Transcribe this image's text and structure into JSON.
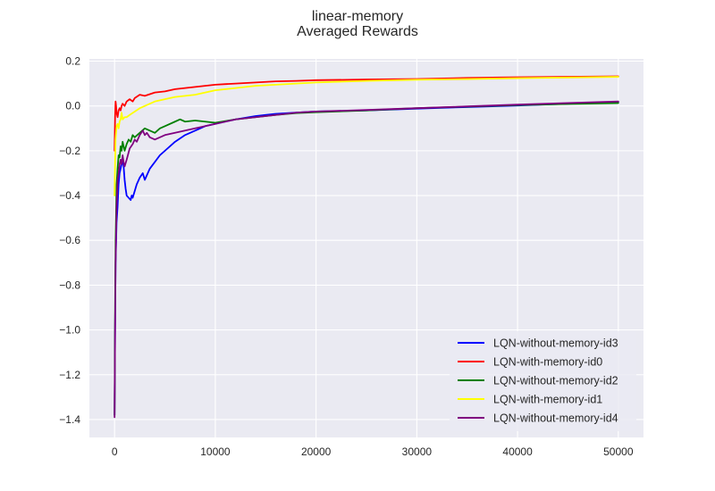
{
  "chart_data": {
    "type": "line",
    "title": "linear-memory",
    "subtitle": "Averaged Rewards",
    "xlabel": "",
    "ylabel": "",
    "xlim": [
      -2500,
      52500
    ],
    "ylim": [
      -1.48,
      0.21
    ],
    "x_ticks": [
      0,
      10000,
      20000,
      30000,
      40000,
      50000
    ],
    "x_tick_labels": [
      "0",
      "10000",
      "20000",
      "30000",
      "40000",
      "50000"
    ],
    "y_ticks": [
      0.2,
      0.0,
      -0.2,
      -0.4,
      -0.6,
      -0.8,
      -1.0,
      -1.2,
      -1.4
    ],
    "y_tick_labels": [
      "0.2",
      "0.0",
      "−0.2",
      "−0.4",
      "−0.6",
      "−0.8",
      "−1.0",
      "−1.2",
      "−1.4"
    ],
    "grid": true,
    "legend_position": "lower-right",
    "background": "#eaeaf2",
    "series": [
      {
        "name": "LQN-without-memory-id3",
        "color": "#0000ff",
        "x": [
          0,
          50,
          100,
          200,
          300,
          400,
          500,
          600,
          700,
          800,
          900,
          1000,
          1100,
          1200,
          1400,
          1600,
          1700,
          1800,
          2000,
          2200,
          2500,
          2800,
          3000,
          3500,
          4000,
          4500,
          5000,
          6000,
          7000,
          8000,
          9000,
          10000,
          12000,
          14000,
          16000,
          18000,
          20000,
          25000,
          30000,
          35000,
          40000,
          45000,
          50000
        ],
        "y": [
          -1.38,
          -1.0,
          -0.7,
          -0.52,
          -0.45,
          -0.35,
          -0.3,
          -0.28,
          -0.26,
          -0.24,
          -0.27,
          -0.33,
          -0.37,
          -0.4,
          -0.41,
          -0.42,
          -0.4,
          -0.41,
          -0.38,
          -0.35,
          -0.32,
          -0.3,
          -0.33,
          -0.28,
          -0.25,
          -0.22,
          -0.2,
          -0.16,
          -0.13,
          -0.11,
          -0.09,
          -0.08,
          -0.06,
          -0.045,
          -0.035,
          -0.03,
          -0.025,
          -0.02,
          -0.012,
          -0.005,
          0.002,
          0.01,
          0.018
        ]
      },
      {
        "name": "LQN-with-memory-id0",
        "color": "#ff0000",
        "x": [
          0,
          50,
          100,
          150,
          200,
          300,
          400,
          500,
          600,
          700,
          800,
          1000,
          1200,
          1500,
          1800,
          2000,
          2500,
          3000,
          4000,
          5000,
          6000,
          7000,
          8000,
          9000,
          10000,
          12000,
          14000,
          16000,
          18000,
          20000,
          25000,
          30000,
          35000,
          40000,
          45000,
          50000
        ],
        "y": [
          -0.2,
          -0.05,
          0.02,
          0.0,
          -0.03,
          -0.05,
          -0.02,
          -0.01,
          -0.02,
          0.0,
          0.01,
          0.0,
          0.02,
          0.03,
          0.02,
          0.035,
          0.05,
          0.045,
          0.06,
          0.065,
          0.075,
          0.08,
          0.085,
          0.09,
          0.095,
          0.1,
          0.105,
          0.11,
          0.112,
          0.115,
          0.118,
          0.12,
          0.125,
          0.128,
          0.13,
          0.132
        ]
      },
      {
        "name": "LQN-without-memory-id2",
        "color": "#008000",
        "x": [
          0,
          50,
          100,
          200,
          300,
          400,
          500,
          600,
          700,
          800,
          1000,
          1200,
          1400,
          1600,
          1800,
          2000,
          2500,
          3000,
          3500,
          4000,
          4500,
          5000,
          6000,
          6500,
          7000,
          8000,
          9000,
          10000,
          12000,
          14000,
          16000,
          18000,
          20000,
          25000,
          30000,
          35000,
          40000,
          45000,
          50000
        ],
        "y": [
          -1.38,
          -0.9,
          -0.6,
          -0.35,
          -0.28,
          -0.22,
          -0.23,
          -0.18,
          -0.2,
          -0.16,
          -0.2,
          -0.17,
          -0.15,
          -0.16,
          -0.13,
          -0.14,
          -0.12,
          -0.1,
          -0.11,
          -0.12,
          -0.1,
          -0.09,
          -0.07,
          -0.06,
          -0.07,
          -0.065,
          -0.07,
          -0.075,
          -0.06,
          -0.05,
          -0.04,
          -0.032,
          -0.028,
          -0.02,
          -0.01,
          -0.003,
          0.004,
          0.009,
          0.013
        ]
      },
      {
        "name": "LQN-with-memory-id1",
        "color": "#ffff00",
        "x": [
          0,
          50,
          100,
          200,
          300,
          400,
          500,
          600,
          700,
          800,
          1000,
          1200,
          1500,
          2000,
          2500,
          3000,
          4000,
          5000,
          6000,
          7000,
          8000,
          9000,
          10000,
          12000,
          14000,
          16000,
          18000,
          20000,
          25000,
          30000,
          35000,
          40000,
          45000,
          50000
        ],
        "y": [
          -0.4,
          -0.25,
          -0.15,
          -0.09,
          -0.08,
          -0.1,
          -0.07,
          -0.06,
          -0.03,
          -0.06,
          -0.05,
          -0.05,
          -0.04,
          -0.025,
          -0.01,
          0.0,
          0.02,
          0.03,
          0.04,
          0.045,
          0.05,
          0.06,
          0.07,
          0.08,
          0.09,
          0.095,
          0.1,
          0.105,
          0.112,
          0.117,
          0.12,
          0.124,
          0.127,
          0.13
        ]
      },
      {
        "name": "LQN-without-memory-id4",
        "color": "#800080",
        "x": [
          0,
          50,
          100,
          200,
          300,
          400,
          500,
          600,
          700,
          800,
          900,
          1000,
          1200,
          1500,
          1800,
          2000,
          2200,
          2500,
          2800,
          3000,
          3200,
          3500,
          4000,
          4500,
          5000,
          6000,
          7000,
          8000,
          9000,
          10000,
          12000,
          14000,
          16000,
          18000,
          20000,
          25000,
          30000,
          35000,
          40000,
          45000,
          50000
        ],
        "y": [
          -1.39,
          -1.0,
          -0.7,
          -0.45,
          -0.33,
          -0.3,
          -0.26,
          -0.24,
          -0.26,
          -0.22,
          -0.25,
          -0.27,
          -0.24,
          -0.19,
          -0.17,
          -0.15,
          -0.16,
          -0.13,
          -0.11,
          -0.13,
          -0.12,
          -0.14,
          -0.15,
          -0.14,
          -0.13,
          -0.12,
          -0.11,
          -0.1,
          -0.09,
          -0.08,
          -0.06,
          -0.05,
          -0.04,
          -0.03,
          -0.025,
          -0.018,
          -0.01,
          -0.002,
          0.006,
          0.013,
          0.02
        ]
      }
    ]
  }
}
